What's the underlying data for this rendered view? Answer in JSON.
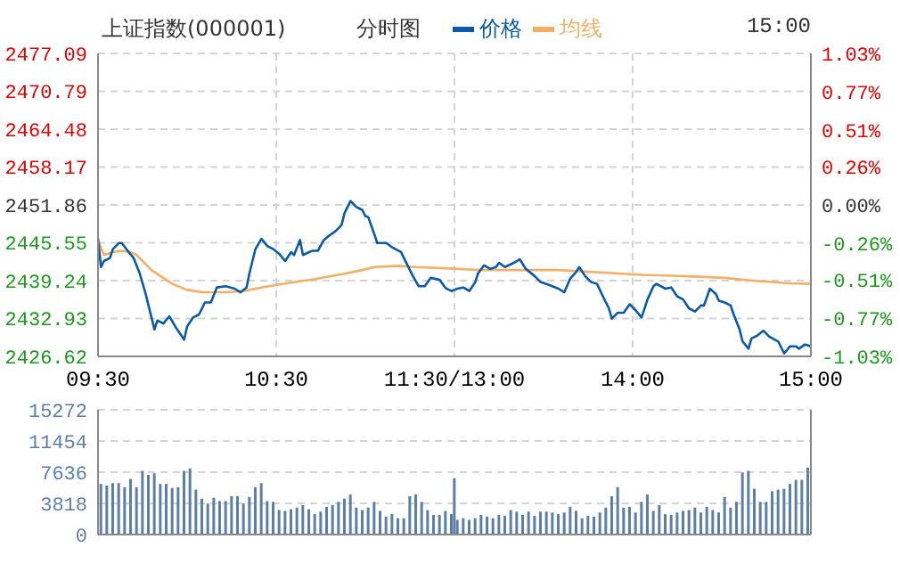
{
  "chart_data": [
    {
      "type": "line",
      "title": "上证指数(000001)",
      "subtitle": "分时图",
      "annotations": [
        "15:00"
      ],
      "legend": "top",
      "grid": true,
      "marker": "none",
      "line_style": "solid",
      "categories": [
        "09:30",
        null,
        null,
        null,
        null,
        null,
        null,
        null,
        null,
        null,
        null,
        null,
        null,
        null,
        null,
        null,
        null,
        null,
        null,
        null,
        null,
        null,
        null,
        null,
        null,
        null,
        null,
        null,
        null,
        null,
        null,
        null,
        null,
        null,
        null,
        null,
        null,
        null,
        null,
        null,
        null,
        null,
        null,
        null,
        null,
        null,
        null,
        null,
        null,
        null,
        null,
        null,
        null,
        null,
        null,
        null,
        null,
        null,
        null,
        null,
        "10:30",
        null,
        null,
        null,
        null,
        null,
        null,
        null,
        null,
        null,
        null,
        null,
        null,
        null,
        null,
        null,
        null,
        null,
        null,
        null,
        null,
        null,
        null,
        null,
        null,
        null,
        null,
        null,
        null,
        null,
        null,
        null,
        null,
        null,
        null,
        null,
        null,
        null,
        null,
        null,
        null,
        null,
        null,
        null,
        null,
        null,
        null,
        null,
        null,
        null,
        null,
        null,
        null,
        null,
        null,
        null,
        null,
        null,
        null,
        null,
        "11:30/13:00",
        null,
        null,
        null,
        null,
        null,
        null,
        null,
        null,
        null,
        null,
        null,
        null,
        null,
        null,
        null,
        null,
        null,
        null,
        null,
        null,
        null,
        null,
        null,
        null,
        null,
        null,
        null,
        null,
        null,
        null,
        null,
        null,
        null,
        null,
        null,
        null,
        null,
        null,
        null,
        null,
        null,
        null,
        null,
        null,
        null,
        null,
        null,
        null,
        null,
        null,
        null,
        null,
        null,
        null,
        null,
        null,
        null,
        null,
        null,
        "14:00",
        null,
        null,
        null,
        null,
        null,
        null,
        null,
        null,
        null,
        null,
        null,
        null,
        null,
        null,
        null,
        null,
        null,
        null,
        null,
        null,
        null,
        null,
        null,
        null,
        null,
        null,
        null,
        null,
        null,
        null,
        null,
        null,
        null,
        null,
        null,
        null,
        null,
        null,
        null,
        null,
        null,
        null,
        null,
        null,
        null,
        null,
        null,
        null,
        null,
        null,
        null,
        null,
        null,
        null,
        null,
        null,
        null,
        null,
        null,
        "15:00"
      ],
      "ylim": [
        2426.62,
        2477.09
      ],
      "yticks": [
        2426.62,
        2432.93,
        2439.24,
        2445.55,
        2451.86,
        2458.17,
        2464.48,
        2470.79,
        2477.09
      ],
      "y2lim": [
        -1.03,
        1.03
      ],
      "y2ticks": [
        {
          "value": -1.03,
          "label": "-1.03%"
        },
        {
          "value": -0.77,
          "label": "-0.77%"
        },
        {
          "value": -0.51,
          "label": "-0.51%"
        },
        {
          "value": -0.26,
          "label": "-0.26%"
        },
        {
          "value": 0,
          "label": "0.00%"
        },
        {
          "value": 0.26,
          "label": "0.26%"
        },
        {
          "value": 0.51,
          "label": "0.51%"
        },
        {
          "value": 0.77,
          "label": "0.77%"
        },
        {
          "value": 1.03,
          "label": "1.03%"
        }
      ],
      "series": [
        {
          "name": "价格",
          "color": "#0a5aa8",
          "values": [
            2446.2,
            2441.5,
            2442.5,
            null,
            2443.0,
            2444.5,
            null,
            2445.5,
            2445.5,
            null,
            2444.2,
            null,
            2443.0,
            null,
            2440.5,
            null,
            2437.1,
            null,
            2433.1,
            2431.1,
            2432.6,
            null,
            2432.1,
            null,
            2433.3,
            null,
            2431.6,
            null,
            null,
            2429.4,
            2431.6,
            null,
            2433.1,
            null,
            2433.6,
            null,
            2435.6,
            null,
            2435.6,
            null,
            2438.1,
            null,
            null,
            2438.3,
            null,
            null,
            2437.9,
            null,
            2437.3,
            null,
            2438.1,
            2440.5,
            null,
            2444.5,
            null,
            2446.2,
            null,
            2445.0,
            null,
            2444.5,
            null,
            2443.7,
            null,
            2442.5,
            null,
            2444.0,
            2443.5,
            null,
            2446.0,
            2443.5,
            null,
            null,
            2444.2,
            null,
            2444.2,
            null,
            2446.0,
            null,
            2446.8,
            null,
            2447.5,
            null,
            2448.5,
            2450.5,
            null,
            2452.5,
            null,
            2451.5,
            null,
            2451.0,
            2450.0,
            2449.8,
            null,
            2447.0,
            2445.5,
            null,
            null,
            2445.5,
            null,
            2444.8,
            null,
            null,
            2444.0,
            null,
            2442.0,
            null,
            2440.0,
            null,
            2438.3,
            null,
            2438.3,
            null,
            2439.7,
            null,
            null,
            2439.4,
            null,
            2438.0,
            null,
            2437.5,
            null,
            2437.9,
            null,
            2438.1,
            null,
            2437.5,
            null,
            2439.0,
            2440.5,
            null,
            2441.8,
            null,
            2441.2,
            null,
            2441.5,
            2442.2,
            null,
            2441.5,
            null,
            null,
            2442.2,
            null,
            2442.8,
            null,
            2441.2,
            null,
            null,
            2440.0,
            null,
            2439.0,
            null,
            null,
            2438.5,
            null,
            null,
            2437.9,
            null,
            2437.3,
            null,
            2439.6,
            null,
            2440.7,
            2441.5,
            null,
            2440.0,
            null,
            2439.0,
            null,
            2438.7,
            null,
            2436.6,
            null,
            2434.6,
            2432.9,
            null,
            2433.9,
            null,
            2433.9,
            null,
            2435.3,
            null,
            2434.3,
            null,
            2433.1,
            null,
            2436.1,
            null,
            2438.3,
            2438.7,
            null,
            null,
            2437.9,
            null,
            2438.1,
            null,
            2436.6,
            null,
            2436.1,
            null,
            2434.6,
            null,
            2434.1,
            null,
            2435.1,
            2435.1,
            null,
            2437.9,
            null,
            2437.0,
            2435.9,
            null,
            2435.6,
            null,
            2435.1,
            2433.6,
            null,
            2431.1,
            2429.1,
            null,
            2427.9,
            2429.6,
            null,
            2430.1,
            null,
            2430.9,
            null,
            2429.9,
            null,
            null,
            2429.1,
            null,
            2427.1,
            null,
            2428.3,
            null,
            2428.3,
            2427.9,
            null,
            2428.6,
            null,
            2428.3
          ]
        },
        {
          "name": "均线",
          "color": "#f5ae67",
          "values": [
            2446.0,
            null,
            2443.5,
            null,
            null,
            2444.0,
            null,
            null,
            2444.2,
            null,
            null,
            2444.0,
            null,
            2443.5,
            null,
            2442.5,
            null,
            null,
            2441.0,
            null,
            null,
            2440.0,
            null,
            null,
            null,
            2438.7,
            null,
            null,
            null,
            null,
            2437.7,
            null,
            null,
            null,
            null,
            2437.3,
            null,
            null,
            null,
            null,
            null,
            null,
            null,
            2437.3,
            null,
            null,
            null,
            null,
            null,
            2437.5,
            null,
            null,
            null,
            null,
            null,
            2438.1,
            null,
            null,
            null,
            null,
            null,
            2438.6,
            null,
            null,
            null,
            null,
            null,
            null,
            null,
            null,
            null,
            null,
            null,
            2439.5,
            null,
            null,
            null,
            null,
            null,
            null,
            null,
            2440.2,
            null,
            null,
            null,
            null,
            null,
            null,
            null,
            2441.0,
            null,
            null,
            null,
            2441.5,
            null,
            null,
            null,
            null,
            null,
            null,
            null,
            2441.7,
            null,
            null,
            null,
            null,
            null,
            2441.5,
            null,
            null,
            null,
            null,
            null,
            null,
            null,
            null,
            null,
            2441.3,
            null,
            null,
            null,
            null,
            null,
            null,
            null,
            null,
            null,
            null,
            null,
            2441.0,
            null,
            null,
            null,
            null,
            null,
            null,
            null,
            null,
            null,
            null,
            null,
            null,
            null,
            null,
            null,
            null,
            null,
            null,
            null,
            null,
            null,
            null,
            null,
            null,
            null,
            2441.0,
            null,
            null,
            null,
            null,
            null,
            null,
            null,
            null,
            null,
            null,
            null,
            null,
            null,
            null,
            null,
            null,
            null,
            2440.5,
            null,
            null,
            null,
            null,
            null,
            null,
            null,
            null,
            null,
            2440.2,
            null,
            null,
            null,
            null,
            null,
            null,
            null,
            null,
            null,
            null,
            null,
            null,
            null,
            2440.0,
            null,
            null,
            null,
            null,
            null,
            null,
            null,
            null,
            null,
            null,
            null,
            null,
            null,
            2439.7,
            null,
            null,
            null,
            null,
            null,
            null,
            null,
            null,
            null,
            2439.2,
            null,
            null,
            null,
            null,
            null,
            null,
            null,
            null,
            null,
            null,
            null,
            2438.8,
            null,
            null,
            null,
            null,
            null,
            null,
            2438.7
          ]
        }
      ]
    },
    {
      "type": "bar",
      "color": "#5b7fa6",
      "grid": true,
      "tick_labels": "y",
      "categories": [
        null,
        null,
        null,
        null,
        null,
        null,
        null,
        null,
        null,
        null,
        null,
        null,
        null,
        null,
        null,
        null,
        null,
        null,
        null,
        null,
        null,
        null,
        null,
        null,
        null,
        null,
        null,
        null,
        null,
        null,
        null,
        null,
        null,
        null,
        null,
        null,
        null,
        null,
        null,
        null,
        null,
        null,
        null,
        null,
        null,
        null,
        null,
        null,
        null,
        null,
        null,
        null,
        null,
        null,
        null,
        null,
        null,
        null,
        null,
        null,
        null,
        null,
        null,
        null,
        null,
        null,
        null,
        null,
        null,
        null,
        null,
        null,
        null,
        null,
        null,
        null,
        null,
        null,
        null,
        null,
        null,
        null,
        null,
        null,
        null,
        null,
        null,
        null,
        null,
        null,
        null,
        null,
        null,
        null,
        null,
        null,
        null,
        null,
        null,
        null,
        null,
        null,
        null,
        null,
        null,
        null,
        null,
        null,
        null,
        null,
        null,
        null,
        null,
        null,
        null,
        null,
        null,
        null,
        null,
        null,
        null,
        null,
        null,
        null,
        null,
        null,
        null,
        null,
        null,
        null,
        null,
        null,
        null,
        null,
        null,
        null,
        null,
        null,
        null,
        null,
        null,
        null,
        null,
        null,
        null,
        null,
        null,
        null,
        null,
        null,
        null,
        null,
        null,
        null,
        null,
        null,
        null,
        null,
        null,
        null,
        null,
        null,
        null,
        null,
        null,
        null,
        null,
        null,
        null,
        null,
        null,
        null,
        null,
        null,
        null,
        null,
        null,
        null,
        null,
        null,
        null,
        null,
        null,
        null,
        null,
        null,
        null,
        null,
        null,
        null,
        null,
        null,
        null,
        null,
        null,
        null,
        null,
        null,
        null,
        null,
        null,
        null,
        null,
        null,
        null,
        null,
        null,
        null,
        null,
        null,
        null,
        null,
        null,
        null,
        null,
        null,
        null,
        null,
        null,
        null,
        null,
        null,
        null,
        null,
        null,
        null,
        null,
        null,
        null,
        null,
        null,
        null,
        null,
        null,
        null,
        null,
        null,
        null,
        null,
        null,
        null
      ],
      "ylim": [
        0,
        15272
      ],
      "yticks": [
        0,
        3818,
        7636,
        11454,
        15272
      ],
      "values": [
        null,
        6200,
        null,
        6000,
        null,
        6300,
        null,
        6300,
        null,
        5800,
        null,
        6800,
        null,
        5800,
        null,
        7800,
        null,
        7300,
        null,
        7500,
        null,
        6200,
        null,
        6200,
        null,
        5700,
        null,
        5800,
        null,
        7800,
        null,
        8100,
        null,
        5500,
        null,
        4400,
        null,
        3800,
        null,
        4500,
        null,
        4100,
        null,
        4100,
        null,
        4700,
        null,
        4700,
        null,
        3800,
        null,
        4600,
        null,
        5800,
        null,
        6300,
        null,
        4100,
        null,
        4000,
        null,
        3000,
        null,
        2900,
        null,
        3100,
        null,
        3300,
        null,
        3600,
        null,
        3100,
        null,
        2500,
        null,
        2800,
        null,
        3400,
        null,
        3600,
        null,
        4000,
        null,
        4400,
        null,
        4900,
        null,
        3300,
        null,
        3000,
        null,
        3300,
        null,
        4000,
        null,
        2900,
        null,
        2200,
        null,
        2500,
        null,
        2000,
        null,
        2000,
        null,
        4700,
        null,
        4900,
        null,
        4000,
        null,
        3000,
        null,
        2400,
        null,
        2400,
        null,
        2900,
        null,
        2500,
        6900,
        1800,
        null,
        2000,
        null,
        1800,
        null,
        2000,
        null,
        2400,
        null,
        2200,
        null,
        2000,
        null,
        2400,
        null,
        2300,
        null,
        3000,
        null,
        2800,
        null,
        2400,
        null,
        2800,
        null,
        2300,
        null,
        2800,
        null,
        2800,
        null,
        2700,
        null,
        2500,
        null,
        2700,
        null,
        3400,
        null,
        2900,
        null,
        2000,
        null,
        2300,
        null,
        2200,
        null,
        2700,
        null,
        3300,
        null,
        4700,
        null,
        5800,
        null,
        3300,
        null,
        3400,
        null,
        2700,
        null,
        4000,
        null,
        4900,
        null,
        2900,
        null,
        3600,
        null,
        2500,
        null,
        2400,
        null,
        2700,
        null,
        2900,
        null,
        3000,
        null,
        3300,
        null,
        2700,
        null,
        3400,
        null,
        3000,
        null,
        2700,
        null,
        4600,
        null,
        3300,
        null,
        4000,
        null,
        7600,
        null,
        7800,
        null,
        5600,
        null,
        4000,
        null,
        4000,
        null,
        5300,
        null,
        5500,
        null,
        5600,
        null,
        6200,
        null,
        6700,
        null,
        6700,
        null,
        8200,
        null
      ]
    }
  ]
}
